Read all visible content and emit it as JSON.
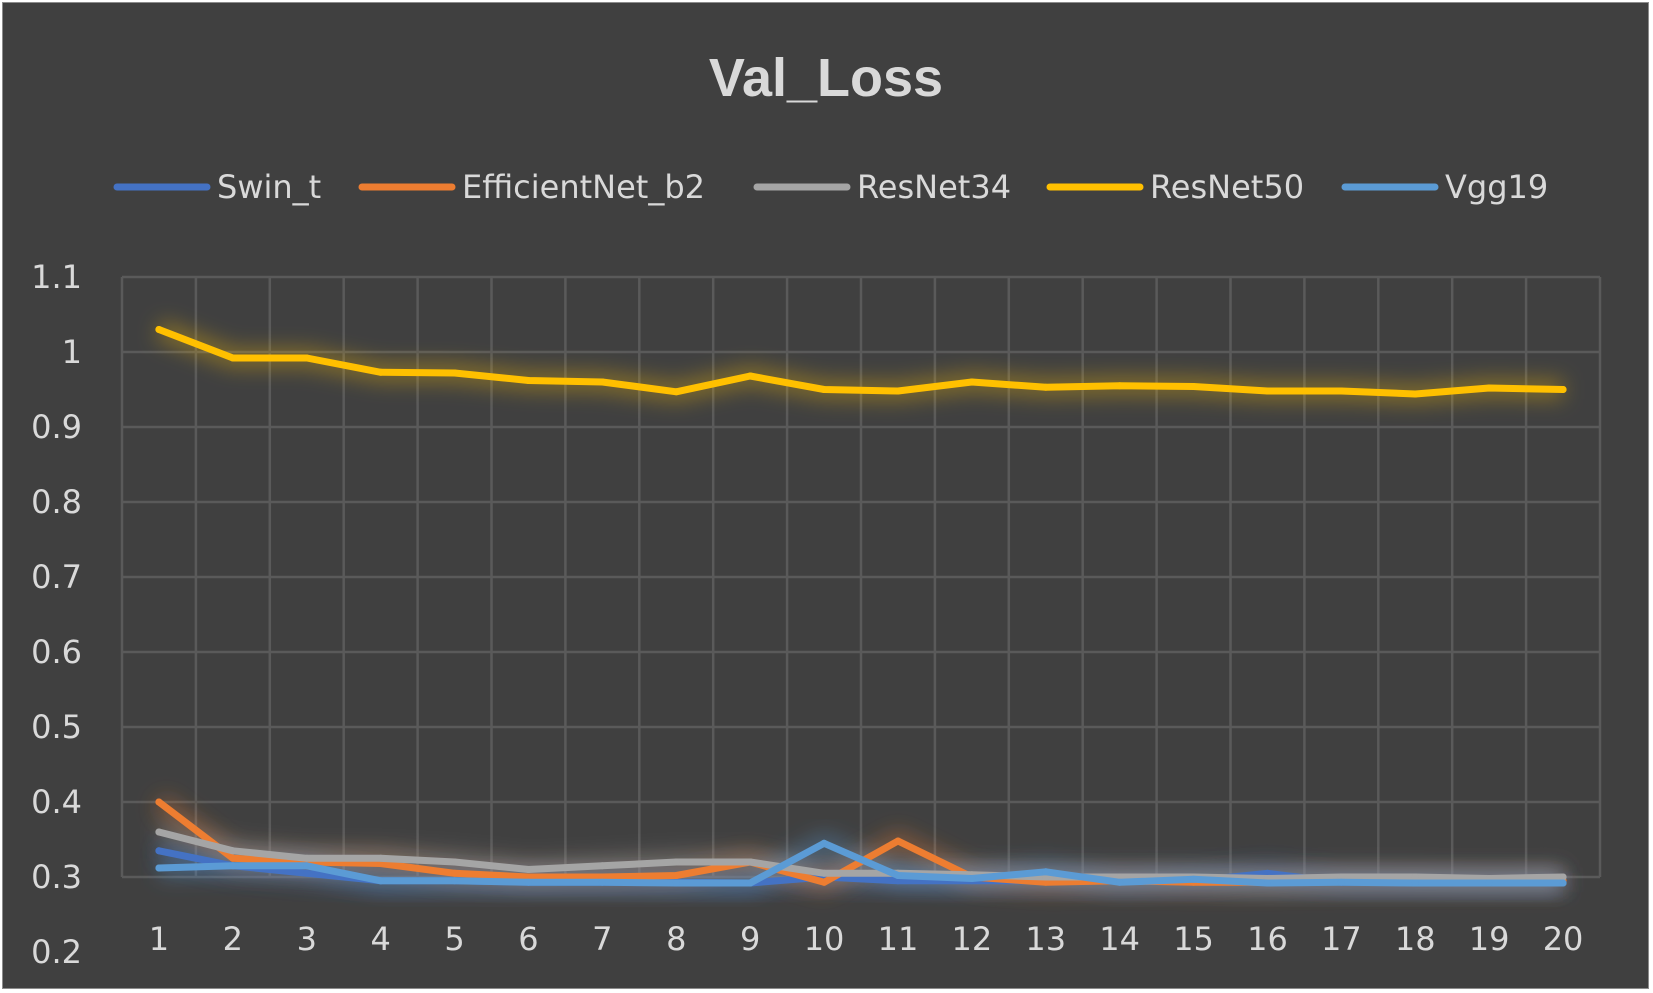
{
  "chart_data": {
    "type": "line",
    "title": "Val_Loss",
    "xlabel": "",
    "ylabel": "",
    "categories": [
      "1",
      "2",
      "3",
      "4",
      "5",
      "6",
      "7",
      "8",
      "9",
      "10",
      "11",
      "12",
      "13",
      "14",
      "15",
      "16",
      "17",
      "18",
      "19",
      "20"
    ],
    "ylim": [
      0.2,
      1.1
    ],
    "yticks": [
      "0.2",
      "0.3",
      "0.4",
      "0.5",
      "0.6",
      "0.7",
      "0.8",
      "0.9",
      "1",
      "1.1"
    ],
    "grid": true,
    "legend_position": "top",
    "series": [
      {
        "name": "Swin_t",
        "color": "#4472c4",
        "values": [
          0.335,
          0.315,
          0.305,
          0.295,
          0.295,
          0.293,
          0.293,
          0.293,
          0.292,
          0.3,
          0.295,
          0.295,
          0.295,
          0.295,
          0.295,
          0.305,
          0.293,
          0.293,
          0.293,
          0.293
        ]
      },
      {
        "name": "EfficientNet_b2",
        "color": "#ed7d31",
        "values": [
          0.4,
          0.325,
          0.32,
          0.318,
          0.305,
          0.3,
          0.3,
          0.302,
          0.32,
          0.293,
          0.348,
          0.3,
          0.293,
          0.295,
          0.293,
          0.293,
          0.295,
          0.295,
          0.295,
          0.295
        ]
      },
      {
        "name": "ResNet34",
        "color": "#a5a5a5",
        "values": [
          0.36,
          0.335,
          0.325,
          0.325,
          0.32,
          0.31,
          0.315,
          0.32,
          0.32,
          0.305,
          0.305,
          0.303,
          0.3,
          0.3,
          0.3,
          0.298,
          0.3,
          0.3,
          0.298,
          0.3
        ]
      },
      {
        "name": "ResNet50",
        "color": "#ffc000",
        "values": [
          1.03,
          0.992,
          0.992,
          0.973,
          0.972,
          0.962,
          0.96,
          0.947,
          0.968,
          0.95,
          0.948,
          0.96,
          0.953,
          0.955,
          0.954,
          0.948,
          0.948,
          0.944,
          0.952,
          0.95
        ]
      },
      {
        "name": "Vgg19",
        "color": "#5b9bd5",
        "values": [
          0.312,
          0.315,
          0.315,
          0.295,
          0.295,
          0.293,
          0.293,
          0.292,
          0.292,
          0.345,
          0.302,
          0.298,
          0.307,
          0.293,
          0.297,
          0.292,
          0.293,
          0.292,
          0.292,
          0.292
        ]
      }
    ]
  }
}
